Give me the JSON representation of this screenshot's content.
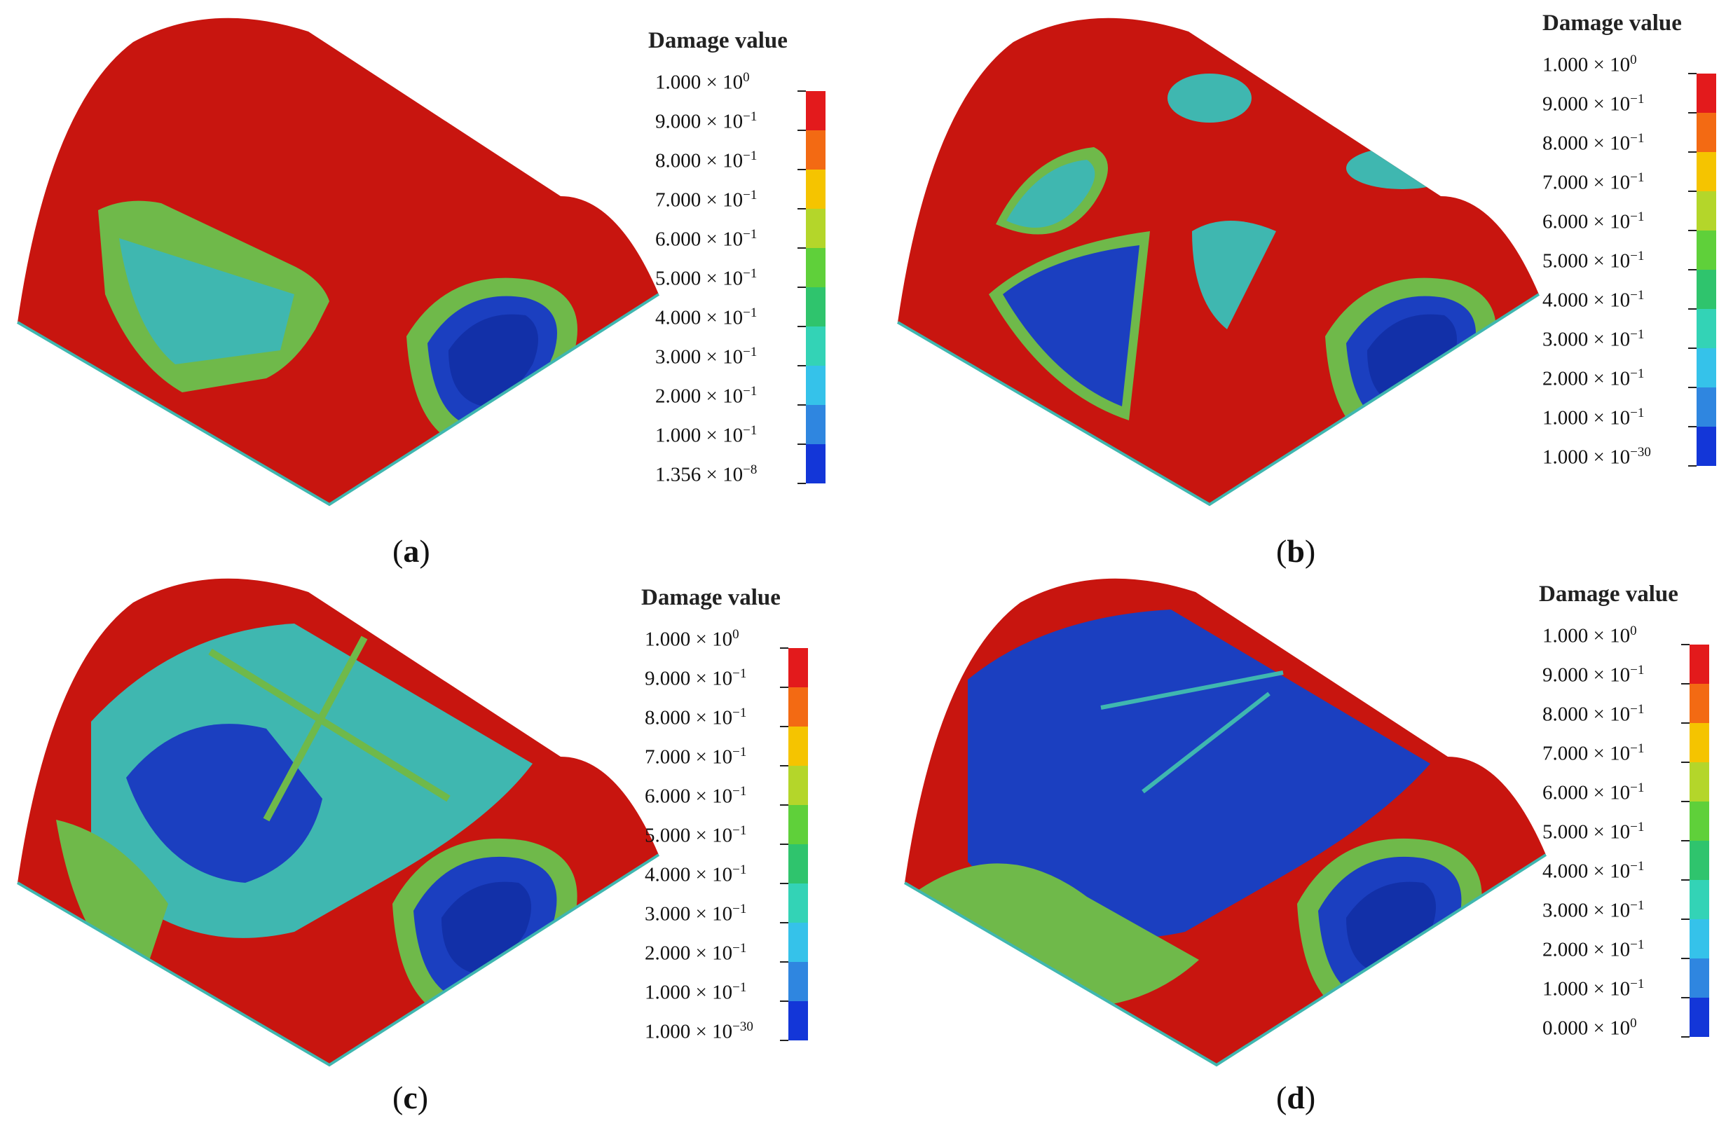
{
  "legend_title": "Damage value",
  "panels": [
    {
      "id": "a",
      "label": "a",
      "scale": [
        {
          "m": "1.000",
          "e": "0"
        },
        {
          "m": "9.000",
          "e": "−1"
        },
        {
          "m": "8.000",
          "e": "−1"
        },
        {
          "m": "7.000",
          "e": "−1"
        },
        {
          "m": "6.000",
          "e": "−1"
        },
        {
          "m": "5.000",
          "e": "−1"
        },
        {
          "m": "4.000",
          "e": "−1"
        },
        {
          "m": "3.000",
          "e": "−1"
        },
        {
          "m": "2.000",
          "e": "−1"
        },
        {
          "m": "1.000",
          "e": "−1"
        },
        {
          "m": "1.356",
          "e": "−8"
        }
      ]
    },
    {
      "id": "b",
      "label": "b",
      "scale": [
        {
          "m": "1.000",
          "e": "0"
        },
        {
          "m": "9.000",
          "e": "−1"
        },
        {
          "m": "8.000",
          "e": "−1"
        },
        {
          "m": "7.000",
          "e": "−1"
        },
        {
          "m": "6.000",
          "e": "−1"
        },
        {
          "m": "5.000",
          "e": "−1"
        },
        {
          "m": "4.000",
          "e": "−1"
        },
        {
          "m": "3.000",
          "e": "−1"
        },
        {
          "m": "2.000",
          "e": "−1"
        },
        {
          "m": "1.000",
          "e": "−1"
        },
        {
          "m": "1.000",
          "e": "−30"
        }
      ]
    },
    {
      "id": "c",
      "label": "c",
      "scale": [
        {
          "m": "1.000",
          "e": "0"
        },
        {
          "m": "9.000",
          "e": "−1"
        },
        {
          "m": "8.000",
          "e": "−1"
        },
        {
          "m": "7.000",
          "e": "−1"
        },
        {
          "m": "6.000",
          "e": "−1"
        },
        {
          "m": "5.000",
          "e": "−1"
        },
        {
          "m": "4.000",
          "e": "−1"
        },
        {
          "m": "3.000",
          "e": "−1"
        },
        {
          "m": "2.000",
          "e": "−1"
        },
        {
          "m": "1.000",
          "e": "−1"
        },
        {
          "m": "1.000",
          "e": "−30"
        }
      ]
    },
    {
      "id": "d",
      "label": "d",
      "scale": [
        {
          "m": "1.000",
          "e": "0"
        },
        {
          "m": "9.000",
          "e": "−1"
        },
        {
          "m": "8.000",
          "e": "−1"
        },
        {
          "m": "7.000",
          "e": "−1"
        },
        {
          "m": "6.000",
          "e": "−1"
        },
        {
          "m": "5.000",
          "e": "−1"
        },
        {
          "m": "4.000",
          "e": "−1"
        },
        {
          "m": "3.000",
          "e": "−1"
        },
        {
          "m": "2.000",
          "e": "−1"
        },
        {
          "m": "1.000",
          "e": "−1"
        },
        {
          "m": "0.000",
          "e": "0"
        }
      ]
    }
  ],
  "colorbar": [
    "#e31a1c",
    "#f36a13",
    "#f5c400",
    "#b4d62a",
    "#5fd03a",
    "#2fc46d",
    "#33d3b6",
    "#35c2ea",
    "#2f86e0",
    "#1336d8"
  ],
  "colors": {
    "red": "#c8150f",
    "green": "#6fb94a",
    "cyan": "#3fb7b0",
    "blue": "#1b3fc0",
    "deepblue": "#1230a8"
  }
}
